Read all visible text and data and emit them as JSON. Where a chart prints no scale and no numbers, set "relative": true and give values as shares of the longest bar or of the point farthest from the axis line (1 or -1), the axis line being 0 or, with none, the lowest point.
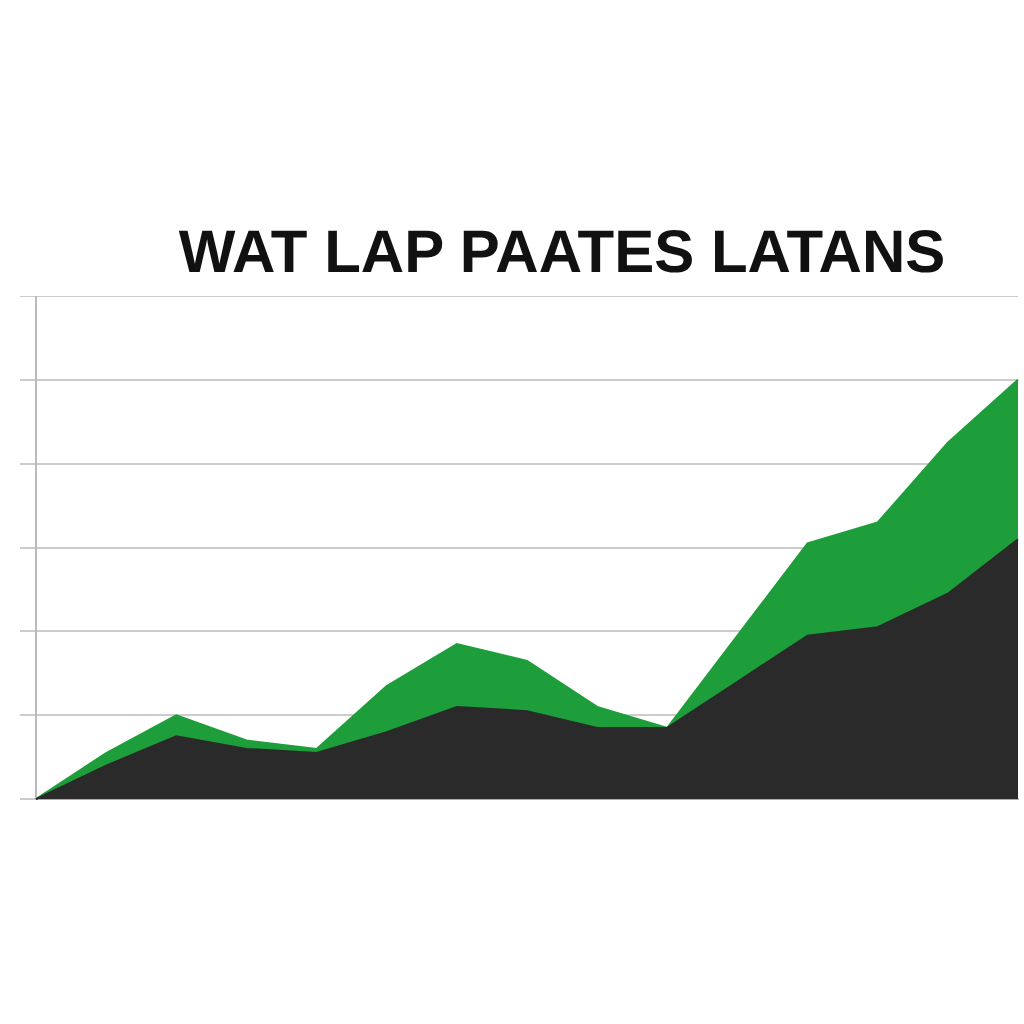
{
  "chart_data": {
    "type": "area",
    "title": "WAT LAP PAATES LATANS",
    "relative": true,
    "grid": "y",
    "legend": false,
    "marker": "none",
    "categories": [
      null,
      null,
      null,
      null,
      null,
      null,
      null,
      null,
      null,
      null,
      null,
      null,
      null,
      null,
      null
    ],
    "series": [
      {
        "color": "#1e9e3a",
        "values": [
          0,
          0.11,
          0.2,
          0.14,
          0.12,
          0.27,
          0.37,
          0.33,
          0.22,
          0.17,
          0.39,
          0.61,
          0.66,
          0.85,
          1
        ]
      },
      {
        "color": "#2a2a2a",
        "values": [
          0,
          0.08,
          0.15,
          0.12,
          0.11,
          0.16,
          0.22,
          0.21,
          0.17,
          0.17,
          0.28,
          0.39,
          0.41,
          0.49,
          0.62
        ]
      }
    ]
  }
}
